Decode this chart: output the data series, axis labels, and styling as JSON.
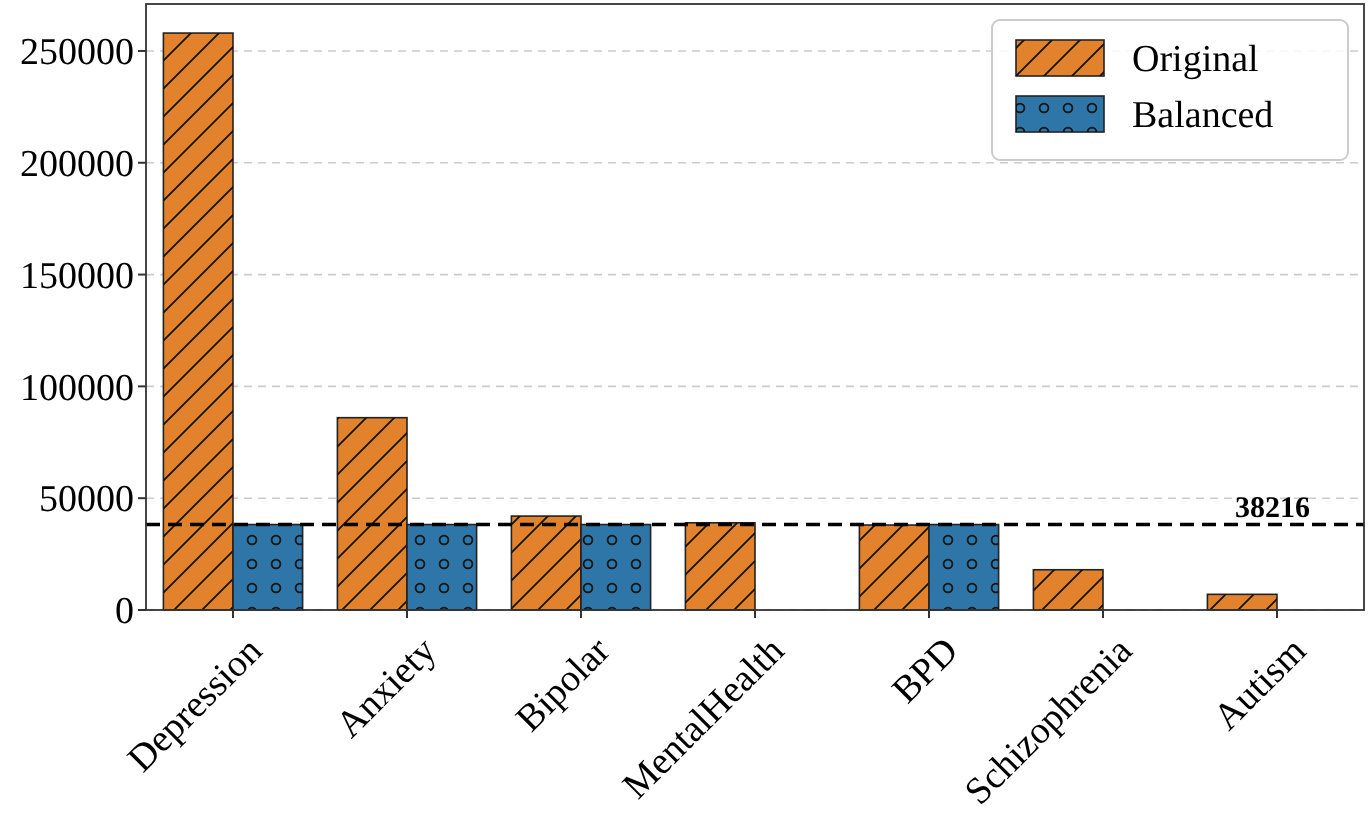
{
  "chart_data": {
    "type": "bar",
    "categories": [
      "Depression",
      "Anxiety",
      "Bipolar",
      "MentalHealth",
      "BPD",
      "Schizophrenia",
      "Autism"
    ],
    "series": [
      {
        "name": "Original",
        "color": "#e2822d",
        "values": [
          258000,
          86000,
          42000,
          39000,
          38000,
          18000,
          7000
        ]
      },
      {
        "name": "Balanced",
        "color": "#2e75a8",
        "values": [
          38216,
          38216,
          38216,
          null,
          38216,
          null,
          null
        ]
      }
    ],
    "ylim": [
      0,
      271000
    ],
    "yticks": [
      0,
      50000,
      100000,
      150000,
      200000,
      250000
    ],
    "grid": "y",
    "legend": "top right",
    "ref_lines": [
      {
        "axis": "y",
        "value": 38216,
        "label": "38216",
        "line_style": "dashed",
        "color": "#000000"
      }
    ]
  }
}
